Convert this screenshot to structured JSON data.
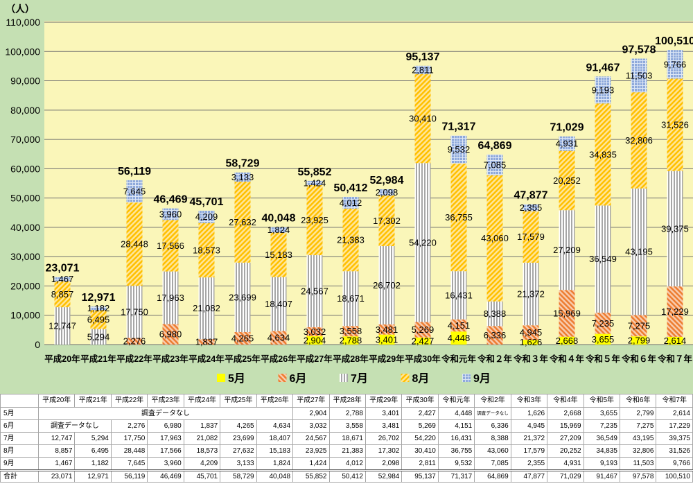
{
  "chart_data": {
    "type": "bar",
    "stacked": true,
    "title": "",
    "xlabel": "",
    "ylabel": "（人）",
    "categories": [
      "平成20年",
      "平成21年",
      "平成22年",
      "平成23年",
      "平成24年",
      "平成25年",
      "平成26年",
      "平成27年",
      "平成28年",
      "平成29年",
      "平成30年",
      "令和元年",
      "令和２年",
      "令和３年",
      "令和４年",
      "令和５年",
      "令和６年",
      "令和７年"
    ],
    "series": [
      {
        "name": "5月",
        "pattern": "solid",
        "color": "#FFFF00",
        "hatch": "#FFFF00",
        "values": [
          null,
          null,
          null,
          null,
          null,
          null,
          null,
          2904,
          2788,
          3401,
          2427,
          4448,
          null,
          1626,
          2668,
          3655,
          2799,
          2614
        ]
      },
      {
        "name": "6月",
        "pattern": "diagonal-down",
        "color": "#F8CBAD",
        "hatch": "#ED7D31",
        "values": [
          null,
          null,
          2276,
          6980,
          1837,
          4265,
          4634,
          3032,
          3558,
          3481,
          5269,
          4151,
          6336,
          4945,
          15969,
          7235,
          7275,
          17229
        ]
      },
      {
        "name": "7月",
        "pattern": "vertical",
        "color": "#FFFFFF",
        "hatch": "#A6A6A6",
        "values": [
          12747,
          5294,
          17750,
          17963,
          21082,
          23699,
          18407,
          24567,
          18671,
          26702,
          54220,
          16431,
          8388,
          21372,
          27209,
          36549,
          43195,
          39375
        ]
      },
      {
        "name": "8月",
        "pattern": "diagonal-up",
        "color": "#FFE699",
        "hatch": "#FFC000",
        "values": [
          8857,
          6495,
          28448,
          17566,
          18573,
          27632,
          15183,
          23925,
          21383,
          17302,
          30410,
          36755,
          43060,
          17579,
          20252,
          34835,
          32806,
          31526
        ]
      },
      {
        "name": "9月",
        "pattern": "grid",
        "color": "#8EA9DB",
        "hatch": "#DCE6F5",
        "values": [
          1467,
          1182,
          7645,
          3960,
          4209,
          3133,
          1824,
          1424,
          4012,
          2098,
          2811,
          9532,
          7085,
          2355,
          4931,
          9193,
          11503,
          9766
        ]
      }
    ],
    "totals": [
      23071,
      12971,
      56119,
      46469,
      45701,
      58729,
      40048,
      55852,
      50412,
      52984,
      95137,
      71317,
      64869,
      47877,
      71029,
      91467,
      97578,
      100510
    ],
    "ylim": [
      0,
      110000
    ],
    "yticks": [
      0,
      10000,
      20000,
      30000,
      40000,
      50000,
      60000,
      70000,
      80000,
      90000,
      100000,
      110000
    ],
    "grid": true,
    "legend_position": "bottom",
    "colors": {
      "background": "#C5E0B3",
      "plot_area": "#FAF6B9",
      "gridline": "#6F6F6F"
    }
  },
  "table": {
    "header": [
      "平成20年",
      "平成21年",
      "平成22年",
      "平成23年",
      "平成24年",
      "平成25年",
      "平成26年",
      "平成27年",
      "平成28年",
      "平成29年",
      "平成30年",
      "令和元年",
      "令和2年",
      "令和3年",
      "令和4年",
      "令和5年",
      "令和6年",
      "令和7年"
    ],
    "rows": [
      {
        "label": "5月",
        "cells": [
          {
            "text": "調査データなし",
            "span": 7
          },
          "2,904",
          "2,788",
          "3,401",
          "2,427",
          "4,448",
          {
            "text": "調査データなし",
            "span": 1
          },
          "1,626",
          "2,668",
          "3,655",
          "2,799",
          "2,614"
        ]
      },
      {
        "label": "6月",
        "cells": [
          {
            "text": "調査データなし",
            "span": 2
          },
          "2,276",
          "6,980",
          "1,837",
          "4,265",
          "4,634",
          "3,032",
          "3,558",
          "3,481",
          "5,269",
          "4,151",
          "6,336",
          "4,945",
          "15,969",
          "7,235",
          "7,275",
          "17,229"
        ]
      },
      {
        "label": "7月",
        "cells": [
          "12,747",
          "5,294",
          "17,750",
          "17,963",
          "21,082",
          "23,699",
          "18,407",
          "24,567",
          "18,671",
          "26,702",
          "54,220",
          "16,431",
          "8,388",
          "21,372",
          "27,209",
          "36,549",
          "43,195",
          "39,375"
        ]
      },
      {
        "label": "8月",
        "cells": [
          "8,857",
          "6,495",
          "28,448",
          "17,566",
          "18,573",
          "27,632",
          "15,183",
          "23,925",
          "21,383",
          "17,302",
          "30,410",
          "36,755",
          "43,060",
          "17,579",
          "20,252",
          "34,835",
          "32,806",
          "31,526"
        ]
      },
      {
        "label": "9月",
        "cells": [
          "1,467",
          "1,182",
          "7,645",
          "3,960",
          "4,209",
          "3,133",
          "1,824",
          "1,424",
          "4,012",
          "2,098",
          "2,811",
          "9,532",
          "7,085",
          "2,355",
          "4,931",
          "9,193",
          "11,503",
          "9,766"
        ]
      }
    ],
    "total_row": {
      "label": "合計",
      "cells": [
        "23,071",
        "12,971",
        "56,119",
        "46,469",
        "45,701",
        "58,729",
        "40,048",
        "55,852",
        "50,412",
        "52,984",
        "95,137",
        "71,317",
        "64,869",
        "47,877",
        "71,029",
        "91,467",
        "97,578",
        "100,510"
      ]
    }
  }
}
